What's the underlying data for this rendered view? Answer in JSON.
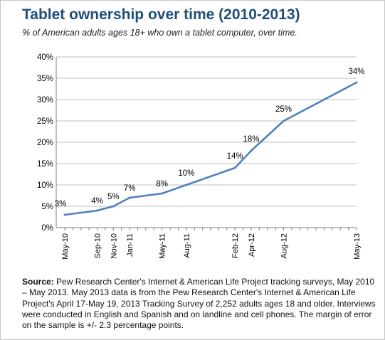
{
  "chart_data": {
    "type": "line",
    "title": "Tablet ownership over time (2010-2013)",
    "subtitle": "% of American adults ages 18+ who own a tablet computer, over time.",
    "xlabel": "",
    "ylabel": "",
    "ylim": [
      0,
      40
    ],
    "y_ticks": [
      "0%",
      "5%",
      "10%",
      "15%",
      "20%",
      "25%",
      "30%",
      "35%",
      "40%"
    ],
    "grid": true,
    "legend": "none",
    "series": [
      {
        "color": "#4f81bd",
        "points": [
          {
            "x": "2010-05",
            "label": "May-10",
            "value": 3,
            "value_label": "3%"
          },
          {
            "x": "2010-09",
            "label": "Sep-10",
            "value": 4,
            "value_label": "4%"
          },
          {
            "x": "2010-11",
            "label": "Nov-10",
            "value": 5,
            "value_label": "5%"
          },
          {
            "x": "2011-01",
            "label": "Jan-11",
            "value": 7,
            "value_label": "7%"
          },
          {
            "x": "2011-05",
            "label": "May-11",
            "value": 8,
            "value_label": "8%"
          },
          {
            "x": "2011-08",
            "label": "Aug-11",
            "value": 10,
            "value_label": "10%"
          },
          {
            "x": "2012-02",
            "label": "Feb-12",
            "value": 14,
            "value_label": "14%"
          },
          {
            "x": "2012-04",
            "label": "Apr-12",
            "value": 18,
            "value_label": "18%"
          },
          {
            "x": "2012-08",
            "label": "Aug-12",
            "value": 25,
            "value_label": "25%"
          },
          {
            "x": "2013-05",
            "label": "May-13",
            "value": 34,
            "value_label": "34%"
          }
        ]
      }
    ]
  },
  "source": {
    "label": "Source:",
    "text": " Pew Research Center's Internet & American Life Project tracking surveys, May 2010 – May 2013. May 2013 data is from the Pew Research Center's Internet & American Life Project's April 17-May 19, 2013 Tracking Survey of 2,252 adults ages 18 and older. Interviews were conducted in English and Spanish and on landline and cell phones. The margin of error on the sample is +/- 2.3 percentage points."
  },
  "colors": {
    "title": "#1f4e79",
    "line": "#4f81bd",
    "grid": "#bfbfbf"
  }
}
